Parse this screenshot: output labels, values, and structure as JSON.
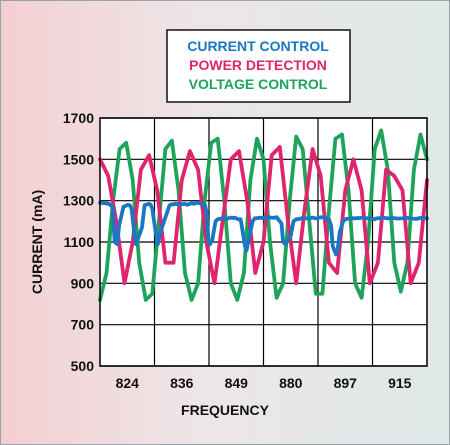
{
  "chart_data": {
    "type": "line",
    "title": "",
    "xlabel": "FREQUENCY",
    "ylabel": "CURRENT (mA)",
    "categories": [
      "824",
      "836",
      "849",
      "880",
      "897",
      "915"
    ],
    "ylim": [
      500,
      1700
    ],
    "yticks": [
      500,
      700,
      900,
      1100,
      1300,
      1500,
      1700
    ],
    "grid": true,
    "legend_position": "top-center",
    "series": [
      {
        "name": "CURRENT CONTROL",
        "color": "#1a78c2",
        "x": [
          0,
          0.08,
          0.16,
          0.235,
          0.245,
          0.27,
          0.315,
          0.35,
          0.43,
          0.51,
          0.545,
          0.555,
          0.58,
          0.625,
          0.66,
          0.77,
          0.815,
          0.82,
          0.84,
          0.9,
          0.93,
          0.96,
          1.02,
          1.06,
          1.1,
          1.24,
          1.265,
          1.27,
          1.29,
          1.335,
          1.38,
          1.41,
          1.47,
          1.53,
          1.56,
          1.6,
          1.66,
          1.69,
          1.72,
          1.78,
          1.82,
          1.85,
          1.93,
          1.96,
          1.97,
          1.99,
          2.02,
          2.06,
          2.12,
          2.16,
          2.19,
          2.26,
          2.29,
          2.32,
          2.4,
          2.44,
          2.47,
          2.54,
          2.58,
          2.6,
          2.66,
          2.69,
          2.72,
          2.8,
          2.84,
          2.87,
          2.93,
          2.96,
          3.0,
          3.06,
          3.1,
          3.13,
          3.2,
          3.24,
          3.27,
          3.33,
          3.36,
          3.4,
          3.5,
          3.55,
          3.6,
          3.66,
          3.69,
          3.72,
          3.78,
          3.82,
          3.85,
          3.91,
          3.95,
          3.98,
          4.06,
          4.1,
          4.13,
          4.2,
          4.24,
          4.27,
          4.33,
          4.36,
          4.4,
          4.46,
          4.5,
          4.53,
          4.6,
          4.64,
          4.67,
          4.73,
          4.76,
          4.8,
          4.86,
          4.9,
          4.93,
          5.0,
          5.04,
          5.07,
          5.13,
          5.16,
          5.2,
          5.26,
          5.3,
          5.33,
          5.4,
          5.44,
          5.47,
          5.53,
          5.56,
          5.6,
          5.66,
          5.7,
          5.73,
          5.8,
          5.84,
          5.87,
          5.93,
          5.96,
          6.0
        ],
        "values_note": "",
        "values": [
          1290,
          1288,
          1285,
          1270,
          1200,
          1100,
          1090,
          1180,
          1270,
          1280,
          1278,
          1275,
          1260,
          1150,
          1090,
          1170,
          1270,
          1278,
          1280,
          1285,
          1280,
          1260,
          1150,
          1090,
          1140,
          1250,
          1270,
          1275,
          1280,
          1282,
          1285,
          1283,
          1282,
          1284,
          1285,
          1280,
          1286,
          1288,
          1285,
          1290,
          1288,
          1287,
          1275,
          1240,
          1180,
          1100,
          1090,
          1110,
          1200,
          1210,
          1212,
          1214,
          1215,
          1212,
          1218,
          1216,
          1218,
          1210,
          1210,
          1180,
          1080,
          1060,
          1100,
          1200,
          1215,
          1214,
          1218,
          1216,
          1216,
          1217,
          1220,
          1218,
          1217,
          1220,
          1210,
          1190,
          1100,
          1090,
          1130,
          1200,
          1210,
          1212,
          1214,
          1216,
          1214,
          1214,
          1216,
          1218,
          1214,
          1215,
          1220,
          1218,
          1217,
          1210,
          1180,
          1080,
          1040,
          1060,
          1150,
          1200,
          1210,
          1212,
          1214,
          1215,
          1214,
          1216,
          1215,
          1218,
          1216,
          1215,
          1214,
          1212,
          1210,
          1214,
          1215,
          1216,
          1217,
          1215,
          1214,
          1216,
          1215,
          1214,
          1213,
          1214,
          1215,
          1217,
          1216,
          1214,
          1213,
          1212,
          1214,
          1216,
          1217,
          1215,
          1214
        ]
      },
      {
        "name": "POWER DETECTION",
        "color": "#e0246d",
        "x": [
          0,
          0.15,
          0.3,
          0.45,
          0.6,
          0.75,
          0.9,
          1.05,
          1.2,
          1.35,
          1.5,
          1.65,
          1.8,
          1.95,
          2.1,
          2.25,
          2.4,
          2.55,
          2.7,
          2.85,
          3.0,
          3.15,
          3.3,
          3.45,
          3.6,
          3.75,
          3.9,
          4.05,
          4.2,
          4.35,
          4.5,
          4.65,
          4.8,
          4.95,
          5.1,
          5.25,
          5.4,
          5.55,
          5.7,
          5.85,
          6.0
        ],
        "values": [
          1500,
          1420,
          1200,
          900,
          1100,
          1450,
          1520,
          1350,
          1000,
          1000,
          1400,
          1540,
          1450,
          1100,
          900,
          1200,
          1500,
          1540,
          1300,
          950,
          1100,
          1520,
          1560,
          1200,
          900,
          1250,
          1550,
          1420,
          1000,
          950,
          1350,
          1500,
          1350,
          900,
          1000,
          1450,
          1420,
          1350,
          900,
          1000,
          1400
        ]
      },
      {
        "name": "VOLTAGE CONTROL",
        "color": "#1ea35a",
        "x": [
          0,
          0.12,
          0.24,
          0.36,
          0.48,
          0.6,
          0.72,
          0.84,
          0.96,
          1.08,
          1.2,
          1.32,
          1.44,
          1.56,
          1.68,
          1.8,
          1.92,
          2.04,
          2.16,
          2.28,
          2.4,
          2.52,
          2.64,
          2.76,
          2.88,
          3.0,
          3.12,
          3.24,
          3.36,
          3.48,
          3.6,
          3.72,
          3.84,
          3.96,
          4.08,
          4.2,
          4.32,
          4.44,
          4.56,
          4.68,
          4.8,
          4.92,
          5.04,
          5.16,
          5.28,
          5.4,
          5.52,
          5.64,
          5.76,
          5.88,
          6.0
        ],
        "values": [
          820,
          950,
          1300,
          1550,
          1580,
          1400,
          1000,
          820,
          850,
          1200,
          1550,
          1590,
          1350,
          950,
          820,
          900,
          1300,
          1580,
          1600,
          1300,
          900,
          820,
          950,
          1400,
          1600,
          1500,
          1100,
          830,
          900,
          1300,
          1610,
          1550,
          1200,
          850,
          850,
          1250,
          1600,
          1620,
          1350,
          900,
          830,
          1100,
          1550,
          1640,
          1450,
          1000,
          860,
          1000,
          1450,
          1620,
          1500
        ]
      }
    ]
  },
  "legend": {
    "items": [
      {
        "label": "CURRENT CONTROL",
        "color": "#1a78c2"
      },
      {
        "label": "POWER DETECTION",
        "color": "#e0246d"
      },
      {
        "label": "VOLTAGE CONTROL",
        "color": "#1ea35a"
      }
    ]
  }
}
